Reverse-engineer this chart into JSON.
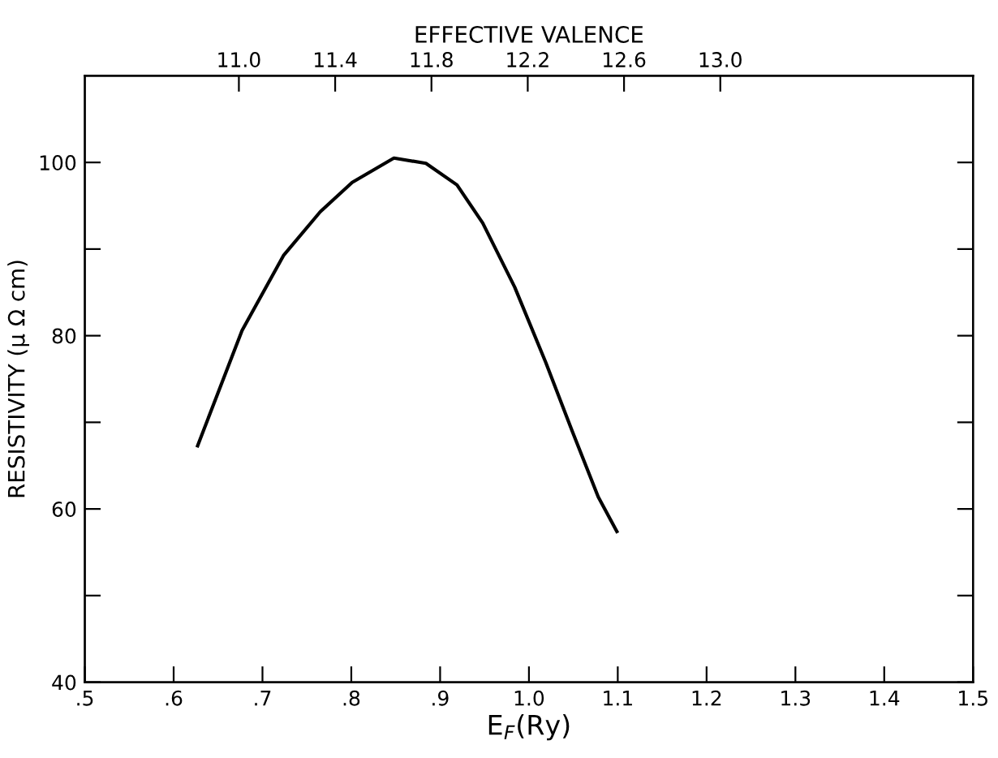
{
  "chart_data": {
    "type": "line",
    "xlabel": "E$_{F}$(Ry)",
    "ylabel": "RESISTIVITY (μ Ω cm)",
    "x2label": "EFFECTIVE VALENCE",
    "series": [
      {
        "color": "#000000",
        "x": [
          0.627,
          0.677,
          0.724,
          0.765,
          0.801,
          0.848,
          0.884,
          0.919,
          0.948,
          0.984,
          1.019,
          1.049,
          1.078,
          1.099
        ],
        "values": [
          67.3,
          80.6,
          89.3,
          94.3,
          97.7,
          100.5,
          99.9,
          97.4,
          93.0,
          85.6,
          76.9,
          68.9,
          61.4,
          57.4
        ]
      }
    ],
    "xlim": [
      0.5,
      1.5
    ],
    "ylim": [
      40,
      110
    ],
    "xticks": [
      {
        "value": 0.5,
        "label": ".5"
      },
      {
        "value": 0.6,
        "label": ".6"
      },
      {
        "value": 0.7,
        "label": ".7"
      },
      {
        "value": 0.8,
        "label": ".8"
      },
      {
        "value": 0.9,
        "label": ".9"
      },
      {
        "value": 1.0,
        "label": "1.0"
      },
      {
        "value": 1.1,
        "label": "1.1"
      },
      {
        "value": 1.2,
        "label": "1.2"
      },
      {
        "value": 1.3,
        "label": "1.3"
      },
      {
        "value": 1.4,
        "label": "1.4"
      },
      {
        "value": 1.5,
        "label": "1.5"
      }
    ],
    "yticks": [
      40,
      {
        "value": 50,
        "label": null
      },
      60,
      {
        "value": 70,
        "label": null
      },
      80,
      {
        "value": 90,
        "label": null
      },
      100
    ],
    "x2lim": [
      10.36,
      14.05
    ],
    "x2ticks": [
      {
        "value": 11.0,
        "label": "11.0"
      },
      {
        "value": 11.4,
        "label": "11.4"
      },
      {
        "value": 11.8,
        "label": "11.8"
      },
      {
        "value": 12.2,
        "label": "12.2"
      },
      {
        "value": 12.6,
        "label": "12.6"
      },
      {
        "value": 13.0,
        "label": "13.0"
      }
    ],
    "grid": false,
    "marker": "none",
    "line_style": "solid"
  }
}
